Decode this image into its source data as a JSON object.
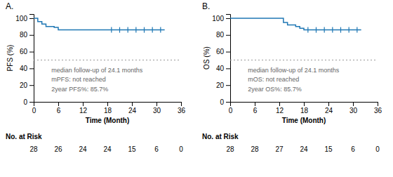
{
  "chart_data": [
    {
      "type": "step",
      "title": "A.",
      "x_label": "Time (Month)",
      "y_label": "PFS (%)",
      "x": [
        0,
        1,
        2,
        3,
        4,
        5,
        6,
        7,
        8,
        9,
        10,
        11,
        12,
        13,
        14,
        15,
        16,
        17,
        18,
        19,
        20,
        21,
        22,
        23,
        24,
        25,
        26,
        27,
        28,
        29,
        30,
        31,
        32
      ],
      "values": [
        100,
        96,
        93,
        90,
        90,
        89,
        86,
        86,
        86,
        86,
        86,
        86,
        86,
        86,
        86,
        86,
        86,
        86,
        86,
        86,
        86,
        86,
        86,
        86,
        86,
        86,
        86,
        86,
        86,
        86,
        86,
        86,
        86
      ],
      "censored": {
        "x": [
          19,
          21,
          23,
          25,
          27,
          29,
          31
        ],
        "y": [
          86,
          86,
          86,
          86,
          86,
          86,
          86
        ]
      },
      "reference_line": 50,
      "annotations": [
        "median follow-up of 24.1 months",
        "mPFS:  not reached",
        "2year PFS%:  85.7%"
      ],
      "xlim": [
        0,
        36
      ],
      "ylim": [
        0,
        105
      ],
      "xticks": [
        0,
        6,
        12,
        18,
        24,
        30,
        36
      ],
      "yticks": [
        0,
        20,
        40,
        60,
        80,
        100
      ],
      "at_risk_label": "No. at Risk",
      "at_risk": {
        "x": [
          0,
          6,
          12,
          18,
          24,
          30,
          36
        ],
        "n": [
          28,
          26,
          24,
          24,
          15,
          6,
          0
        ]
      }
    },
    {
      "type": "step",
      "title": "B.",
      "x_label": "Time (Month)",
      "y_label": "OS (%)",
      "x": [
        0,
        1,
        2,
        3,
        4,
        5,
        6,
        7,
        8,
        9,
        10,
        11,
        12,
        13,
        14,
        15,
        16,
        17,
        18,
        19,
        20,
        21,
        22,
        23,
        24,
        25,
        26,
        27,
        28,
        29,
        30,
        31,
        32
      ],
      "values": [
        100,
        100,
        100,
        100,
        100,
        100,
        100,
        100,
        100,
        100,
        100,
        100,
        100,
        95,
        92,
        92,
        90,
        88,
        86,
        86,
        86,
        86,
        86,
        86,
        86,
        86,
        86,
        86,
        86,
        86,
        86,
        86,
        86
      ],
      "censored": {
        "x": [
          19,
          21,
          23,
          25,
          27,
          29,
          31
        ],
        "y": [
          86,
          86,
          86,
          86,
          86,
          86,
          86
        ]
      },
      "reference_line": 50,
      "annotations": [
        "median follow-up of 24.1 months",
        "mOS:  not reached",
        "2year OS%:  85.7%"
      ],
      "xlim": [
        0,
        36
      ],
      "ylim": [
        0,
        105
      ],
      "xticks": [
        0,
        6,
        12,
        18,
        24,
        30,
        36
      ],
      "yticks": [
        0,
        20,
        40,
        60,
        80,
        100
      ],
      "at_risk_label": "No. at Risk",
      "at_risk": {
        "x": [
          0,
          6,
          12,
          18,
          24,
          30,
          36
        ],
        "n": [
          28,
          28,
          27,
          24,
          15,
          6,
          0
        ]
      }
    }
  ]
}
